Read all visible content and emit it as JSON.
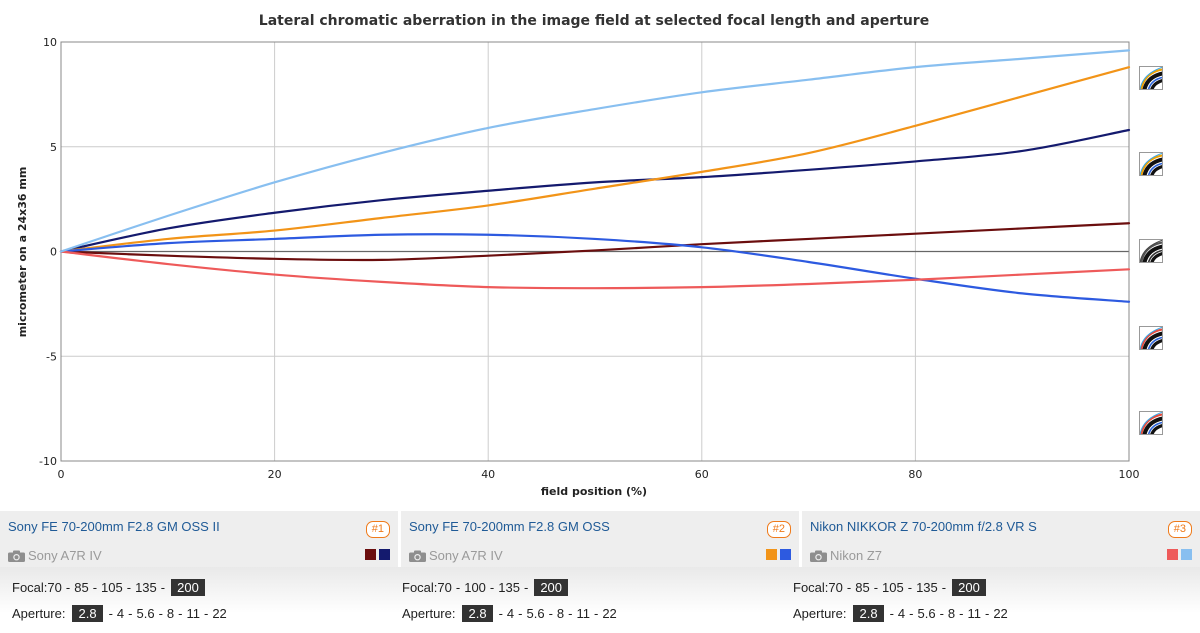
{
  "chart_data": {
    "type": "line",
    "title": "Lateral chromatic aberration in the image field at selected focal length and aperture",
    "xlabel": "field position (%)",
    "ylabel": "micrometer on a 24x36 mm",
    "xlim": [
      0,
      100
    ],
    "ylim": [
      -10,
      10
    ],
    "x_ticks": [
      0,
      20,
      40,
      60,
      80,
      100
    ],
    "y_ticks": [
      10,
      5,
      0,
      -5,
      -10
    ],
    "grid": true,
    "x": [
      0,
      10,
      20,
      30,
      40,
      50,
      60,
      70,
      80,
      90,
      100
    ],
    "series": [
      {
        "color": "#6b0e0e",
        "values": [
          0,
          -0.2,
          -0.35,
          -0.4,
          -0.2,
          0.05,
          0.35,
          0.6,
          0.85,
          1.1,
          1.35
        ]
      },
      {
        "color": "#141a6e",
        "values": [
          0,
          1.1,
          1.85,
          2.45,
          2.9,
          3.3,
          3.55,
          3.9,
          4.3,
          4.8,
          5.8
        ]
      },
      {
        "color": "#f29418",
        "values": [
          0,
          0.6,
          1.0,
          1.6,
          2.2,
          3.0,
          3.8,
          4.7,
          6.0,
          7.4,
          8.8
        ]
      },
      {
        "color": "#2d5ae0",
        "values": [
          0,
          0.4,
          0.6,
          0.8,
          0.8,
          0.6,
          0.2,
          -0.5,
          -1.3,
          -2.0,
          -2.4
        ]
      },
      {
        "color": "#ee5a5a",
        "values": [
          0,
          -0.6,
          -1.1,
          -1.45,
          -1.7,
          -1.75,
          -1.7,
          -1.55,
          -1.35,
          -1.1,
          -0.85
        ]
      },
      {
        "color": "#88bff0",
        "values": [
          0,
          1.7,
          3.3,
          4.7,
          5.9,
          6.8,
          7.6,
          8.2,
          8.8,
          9.2,
          9.6
        ]
      }
    ]
  },
  "lenses": [
    {
      "name": "Sony FE 70-200mm F2.8 GM OSS II",
      "num": "#1",
      "camera": "Sony A7R IV",
      "colors": [
        "#6b0e0e",
        "#141a6e"
      ]
    },
    {
      "name": "Sony FE 70-200mm F2.8 GM OSS",
      "num": "#2",
      "camera": "Sony A7R IV",
      "colors": [
        "#f29418",
        "#2d5ae0"
      ]
    },
    {
      "name": "Nikon NIKKOR Z 70-200mm f/2.8 VR S",
      "num": "#3",
      "camera": "Nikon Z7",
      "colors": [
        "#ee5a5a",
        "#88bff0"
      ]
    }
  ],
  "controls": [
    {
      "focal_label": "Focal:",
      "focal": [
        "70",
        "85",
        "105",
        "135",
        "200"
      ],
      "focal_sel": 4,
      "aperture_label": "Aperture:",
      "aperture": [
        "2.8",
        "4",
        "5.6",
        "8",
        "11",
        "22"
      ],
      "aperture_sel": 0
    },
    {
      "focal_label": "Focal:",
      "focal": [
        "70",
        "100",
        "135",
        "200"
      ],
      "focal_sel": 3,
      "aperture_label": "Aperture:",
      "aperture": [
        "2.8",
        "4",
        "5.6",
        "8",
        "11",
        "22"
      ],
      "aperture_sel": 0
    },
    {
      "focal_label": "Focal:",
      "focal": [
        "70",
        "85",
        "105",
        "135",
        "200"
      ],
      "focal_sel": 4,
      "aperture_label": "Aperture:",
      "aperture": [
        "2.8",
        "4",
        "5.6",
        "8",
        "11",
        "22"
      ],
      "aperture_sel": 0
    }
  ],
  "icons": [
    "fringe-sample-icon",
    "camera-icon"
  ]
}
